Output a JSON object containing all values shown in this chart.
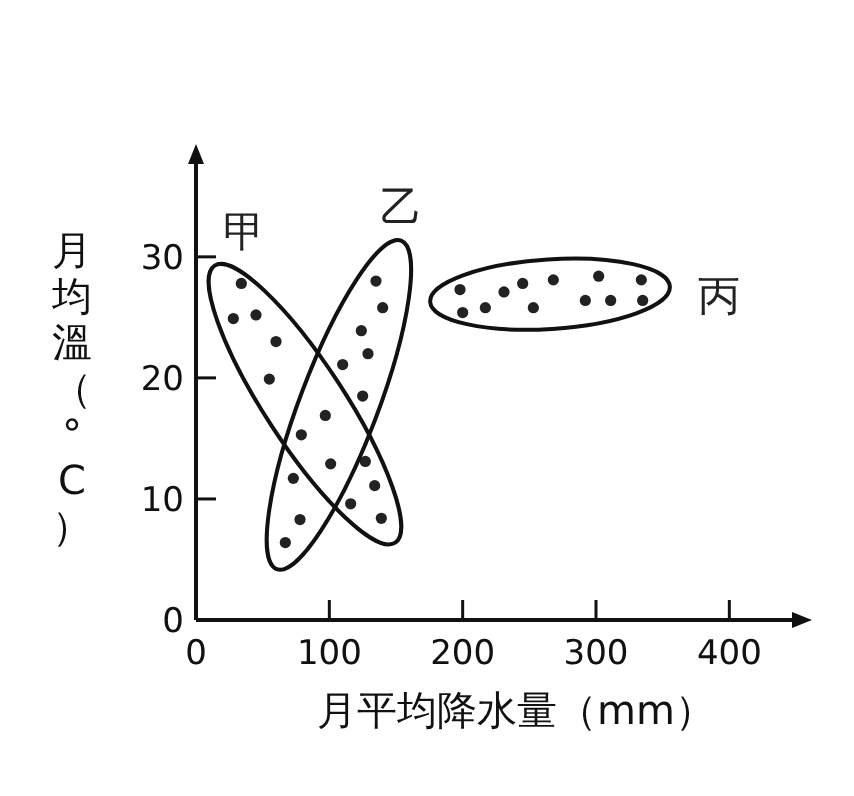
{
  "chart_data": {
    "type": "scatter",
    "xlabel": "月平均降水量（mm）",
    "ylabel": "月均溫（°C）",
    "xlim": [
      0,
      450
    ],
    "ylim": [
      0,
      38
    ],
    "xticks": [
      0,
      100,
      200,
      300,
      400
    ],
    "yticks": [
      0,
      10,
      20,
      30
    ],
    "marker": "circle",
    "grid": false,
    "series": [
      {
        "name": "甲",
        "color": "#222222",
        "x": [
          34,
          28,
          45,
          60,
          55,
          79,
          127,
          134,
          116,
          139
        ],
        "values": [
          27.8,
          24.9,
          25.2,
          23.0,
          19.9,
          15.3,
          13.1,
          11.1,
          9.6,
          8.4
        ]
      },
      {
        "name": "乙",
        "color": "#222222",
        "x": [
          135,
          140,
          124,
          129,
          110,
          125,
          97,
          101,
          73,
          78,
          67
        ],
        "values": [
          28.0,
          25.8,
          23.9,
          22.0,
          21.1,
          18.5,
          16.9,
          12.9,
          11.7,
          8.3,
          6.4
        ]
      },
      {
        "name": "丙",
        "color": "#222222",
        "x": [
          198,
          200,
          217,
          231,
          245,
          253,
          268,
          292,
          302,
          311,
          334,
          335
        ],
        "values": [
          27.3,
          25.4,
          25.8,
          27.1,
          27.8,
          25.8,
          28.1,
          26.4,
          28.4,
          26.4,
          28.1,
          26.4
        ]
      }
    ]
  }
}
